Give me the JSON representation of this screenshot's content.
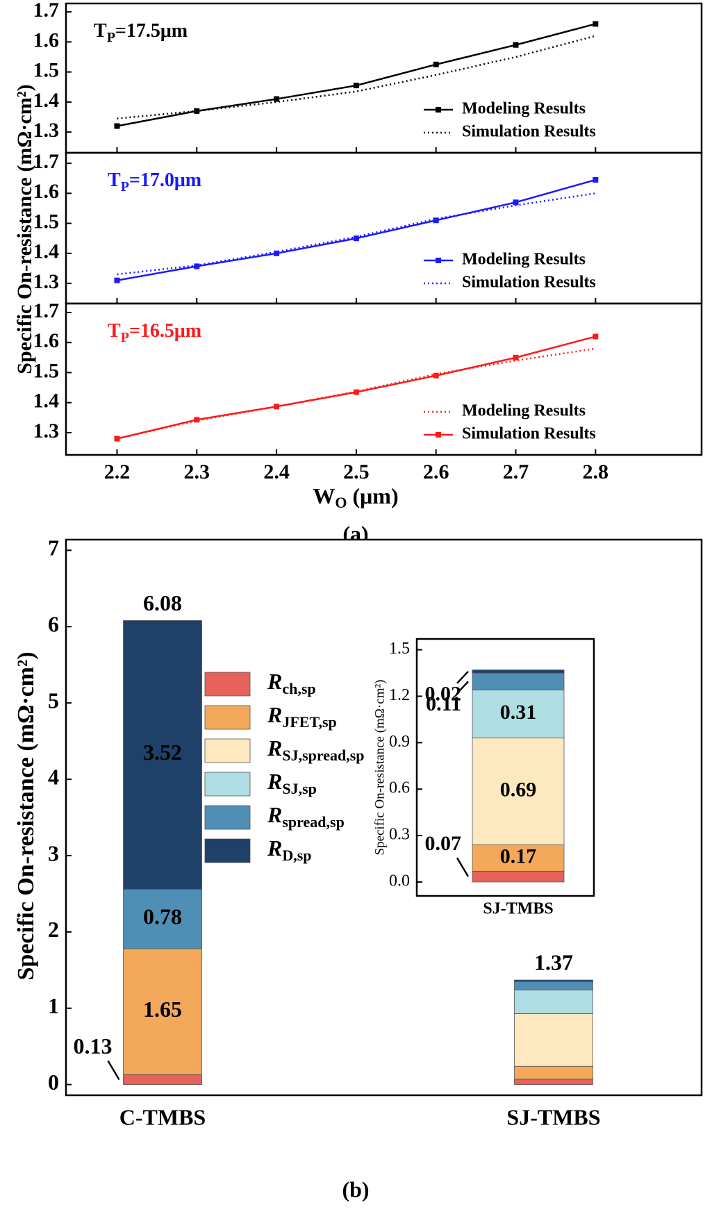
{
  "chart_data": [
    {
      "type": "line",
      "ylabel": "Specific On-resistance (mΩ·cm²)",
      "annotation": {
        "text": "T",
        "sub": "P",
        "rest": "=17.5μm"
      },
      "x": [
        2.2,
        2.3,
        2.4,
        2.5,
        2.6,
        2.7,
        2.8
      ],
      "xlim": [
        2.136,
        2.933
      ],
      "xticks": [
        2.2,
        2.3,
        2.4,
        2.5,
        2.6,
        2.7,
        2.8
      ],
      "ylim": [
        1.231,
        1.728
      ],
      "yticks": [
        1.3,
        1.4,
        1.5,
        1.6,
        1.7
      ],
      "legend": "lower right",
      "series": [
        {
          "name": "Modeling Results",
          "color": "#000000",
          "style": "solid",
          "marker": "square",
          "values": [
            1.32,
            1.37,
            1.41,
            1.455,
            1.525,
            1.59,
            1.66
          ]
        },
        {
          "name": "Simulation Results",
          "color": "#000000",
          "style": "dotted",
          "values": [
            1.345,
            1.37,
            1.4,
            1.435,
            1.49,
            1.55,
            1.62
          ]
        }
      ]
    },
    {
      "type": "line",
      "annotation": {
        "text": "T",
        "sub": "P",
        "rest": "=17.0μm"
      },
      "x": [
        2.2,
        2.3,
        2.4,
        2.5,
        2.6,
        2.7,
        2.8
      ],
      "xlim": [
        2.136,
        2.933
      ],
      "xticks": [
        2.2,
        2.3,
        2.4,
        2.5,
        2.6,
        2.7,
        2.8
      ],
      "ylim": [
        1.233,
        1.735
      ],
      "yticks": [
        1.3,
        1.4,
        1.5,
        1.6,
        1.7
      ],
      "legend": "lower right",
      "series": [
        {
          "name": "Modeling Results",
          "color": "#1a1aff",
          "style": "solid",
          "marker": "square",
          "values": [
            1.31,
            1.357,
            1.4,
            1.45,
            1.51,
            1.57,
            1.645
          ]
        },
        {
          "name": "Simulation Results",
          "color": "#1a1aff",
          "style": "dotted",
          "values": [
            1.33,
            1.36,
            1.405,
            1.455,
            1.515,
            1.56,
            1.6
          ]
        }
      ]
    },
    {
      "type": "line",
      "annotation": {
        "text": "T",
        "sub": "P",
        "rest": "=16.5μm"
      },
      "xlabel": {
        "text": "W",
        "sub": "O",
        "rest": " (μm)"
      },
      "caption": "(a)",
      "x": [
        2.2,
        2.3,
        2.4,
        2.5,
        2.6,
        2.7,
        2.8
      ],
      "xlim": [
        2.136,
        2.933
      ],
      "xticks": [
        2.2,
        2.3,
        2.4,
        2.5,
        2.6,
        2.7,
        2.8
      ],
      "ylim": [
        1.226,
        1.73
      ],
      "yticks": [
        1.3,
        1.4,
        1.5,
        1.6,
        1.7
      ],
      "legend": "lower right",
      "series": [
        {
          "name": "Modeling Results",
          "color": "#ff1a1a",
          "style": "dotted",
          "values": [
            1.28,
            1.34,
            1.387,
            1.437,
            1.495,
            1.54,
            1.58
          ]
        },
        {
          "name": "Simulation Results",
          "color": "#ff1a1a",
          "style": "solid",
          "marker": "square",
          "values": [
            1.28,
            1.343,
            1.387,
            1.435,
            1.49,
            1.55,
            1.62
          ]
        }
      ]
    },
    {
      "type": "stacked_bar",
      "ylabel": "Specific On-resistance (mΩ·cm²)",
      "caption": "(b)",
      "categories": [
        "C-TMBS",
        "SJ-TMBS"
      ],
      "ylim": [
        -0.14,
        7.14
      ],
      "yticks": [
        0,
        1,
        2,
        3,
        4,
        5,
        6,
        7
      ],
      "totals": [
        6.08,
        1.37
      ],
      "show_values": [
        true,
        false
      ],
      "legend": "center",
      "series": [
        {
          "name": "Rch,sp",
          "color": "#e8615a",
          "values": [
            0.13,
            0.07
          ]
        },
        {
          "name": "RJFET,sp",
          "color": "#f4a95a",
          "values": [
            1.65,
            0.17
          ]
        },
        {
          "name": "RSJ,spread,sp",
          "color": "#fde8c0",
          "values": [
            null,
            0.69
          ]
        },
        {
          "name": "RSJ,sp",
          "color": "#aedde3",
          "values": [
            null,
            0.31
          ]
        },
        {
          "name": "Rspread,sp",
          "color": "#4f8fb5",
          "values": [
            0.78,
            0.11
          ]
        },
        {
          "name": "RD,sp",
          "color": "#1f4068",
          "values": [
            3.52,
            0.02
          ]
        }
      ]
    },
    {
      "type": "stacked_bar",
      "ylabel": "Specific On-resistance (mΩ·cm²)",
      "categories": [
        "SJ-TMBS"
      ],
      "ylim": [
        -0.09,
        1.57
      ],
      "yticks": [
        {
          "value": 0,
          "label": "0.0"
        },
        0.3,
        0.6,
        0.9,
        1.2,
        1.5
      ],
      "show_values": [
        true
      ],
      "series": [
        {
          "color": "#e8615a",
          "values": [
            0.07
          ]
        },
        {
          "color": "#f4a95a",
          "values": [
            0.17
          ]
        },
        {
          "color": "#fde8c0",
          "values": [
            0.69
          ]
        },
        {
          "color": "#aedde3",
          "values": [
            0.31
          ]
        },
        {
          "color": "#4f8fb5",
          "values": [
            0.11
          ]
        },
        {
          "color": "#1f4068",
          "values": [
            0.02
          ]
        }
      ]
    }
  ]
}
